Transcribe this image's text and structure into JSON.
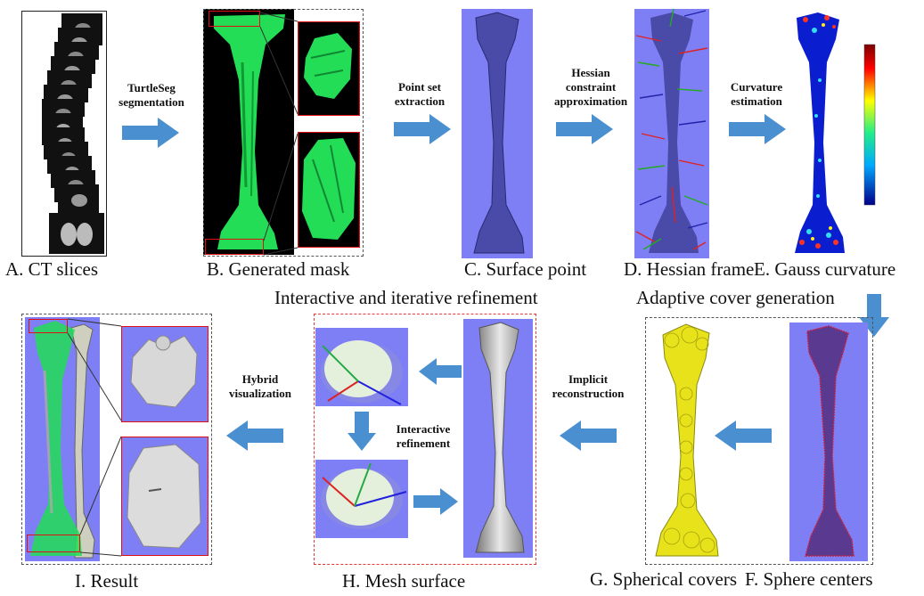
{
  "captions": {
    "a": "A. CT slices",
    "b": "B. Generated mask",
    "c": "C. Surface point",
    "d": "D. Hessian frame",
    "e": "E. Gauss curvature",
    "f": "F. Sphere centers",
    "g": "G. Spherical covers",
    "h": "H. Mesh surface",
    "i": "I. Result"
  },
  "step_labels": {
    "segmentation": [
      "TurtleSeg",
      "segmentation"
    ],
    "extraction": [
      "Point set",
      "extraction"
    ],
    "hessian": [
      "Hessian",
      "constraint",
      "approximation"
    ],
    "curvature": [
      "Curvature",
      "estimation"
    ],
    "implicit": [
      "Implicit",
      "reconstruction"
    ],
    "interactive": [
      "Interactive",
      "refinement"
    ],
    "hybrid": [
      "Hybrid",
      "visualization"
    ]
  },
  "headings": {
    "refinement": "Interactive and iterative refinement",
    "adaptive": "Adaptive cover generation"
  },
  "colors": {
    "arrow": "#4a8fd0",
    "panel_blue": "#7f7ff5",
    "mask_green": "#22dd55",
    "sphere_yellow": "#e8e21a"
  }
}
